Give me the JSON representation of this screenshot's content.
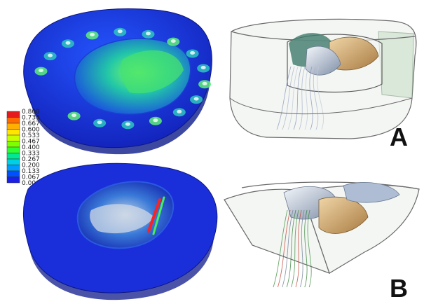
{
  "figure": {
    "panel_labels": [
      "A",
      "B"
    ],
    "colorbar": {
      "ticks": [
        "0.800",
        "0.733",
        "0.667",
        "0.600",
        "0.533",
        "0.467",
        "0.400",
        "0.333",
        "0.267",
        "0.200",
        "0.133",
        "0.067",
        "0.000"
      ],
      "colors": [
        "#e41a1c",
        "#ff6a00",
        "#ffb000",
        "#ffe600",
        "#c8ff00",
        "#7dff00",
        "#2eff33",
        "#00e896",
        "#00d0e6",
        "#009cff",
        "#0050ff",
        "#1a20e6"
      ]
    },
    "colors": {
      "fea_base": "#1a2fd9",
      "fea_dark": "#0d1a8a",
      "fea_mid": "#2f6bff",
      "fea_green": "#3cd860",
      "shell_stroke": "#6a6a6a",
      "shell_fill": "#eef2ee",
      "leaflet_gold": "#c9a06a",
      "leaflet_silver": "#b9c4d6"
    }
  }
}
